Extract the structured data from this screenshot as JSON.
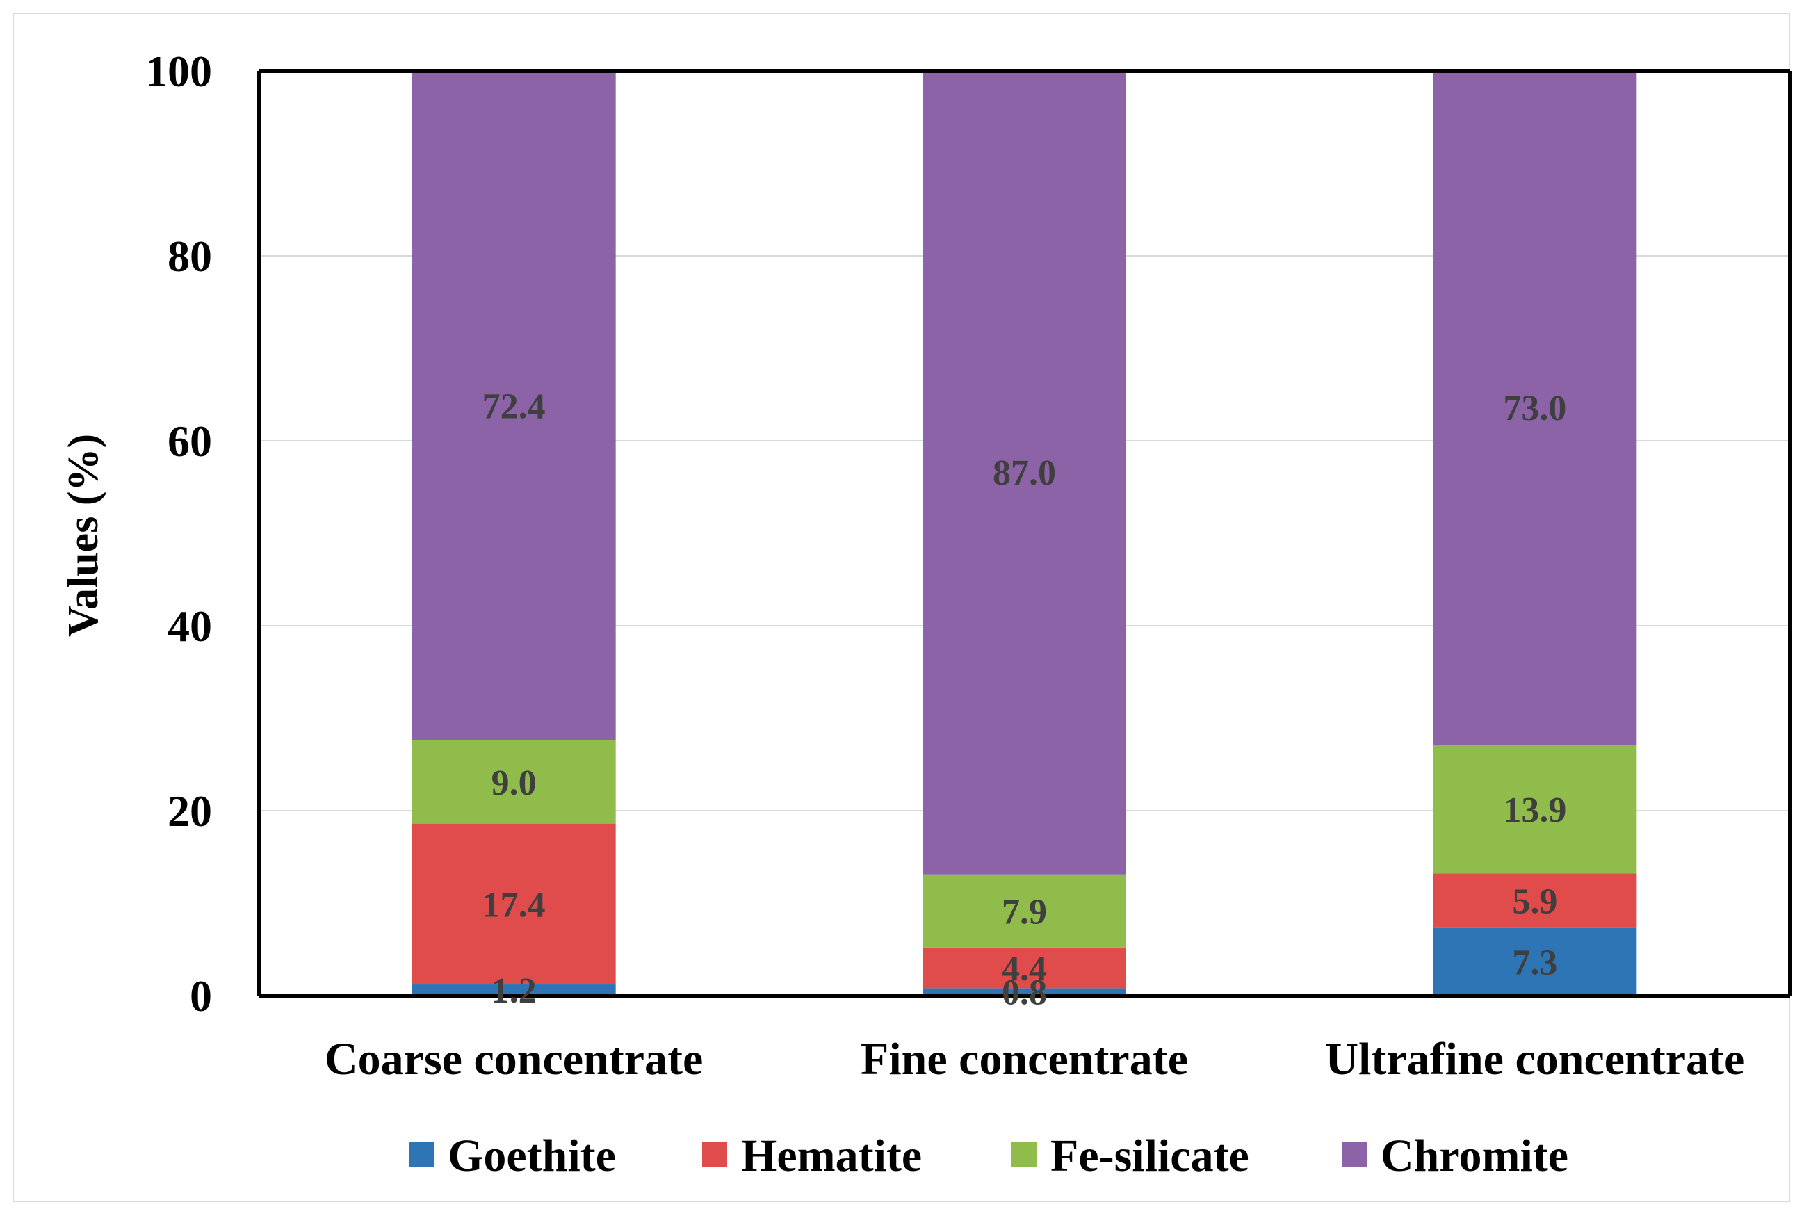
{
  "chart_data": {
    "type": "bar",
    "stacked": true,
    "categories": [
      "Coarse concentrate",
      "Fine concentrate",
      "Ultrafine concentrate"
    ],
    "series": [
      {
        "name": "Goethite",
        "color": "#2e75b6",
        "values": [
          1.2,
          0.8,
          7.3
        ],
        "labels": [
          "1.2",
          "0.8",
          "7.3"
        ]
      },
      {
        "name": "Hematite",
        "color": "#e04b4b",
        "values": [
          17.4,
          4.4,
          5.9
        ],
        "labels": [
          "17.4",
          "4.4",
          "5.9"
        ]
      },
      {
        "name": "Fe-silicate",
        "color": "#8fbc4a",
        "values": [
          9.0,
          7.9,
          13.9
        ],
        "labels": [
          "9.0",
          "7.9",
          "13.9"
        ]
      },
      {
        "name": "Chromite",
        "color": "#8b63a6",
        "values": [
          72.4,
          87.0,
          73.0
        ],
        "labels": [
          "72.4",
          "87.0",
          "73.0"
        ]
      }
    ],
    "title": "",
    "xlabel": "",
    "ylabel": "Values (%)",
    "ylim": [
      0,
      100
    ],
    "yticks": [
      "0",
      "20",
      "40",
      "60",
      "80",
      "100"
    ],
    "grid": true,
    "legend_position": "bottom"
  }
}
